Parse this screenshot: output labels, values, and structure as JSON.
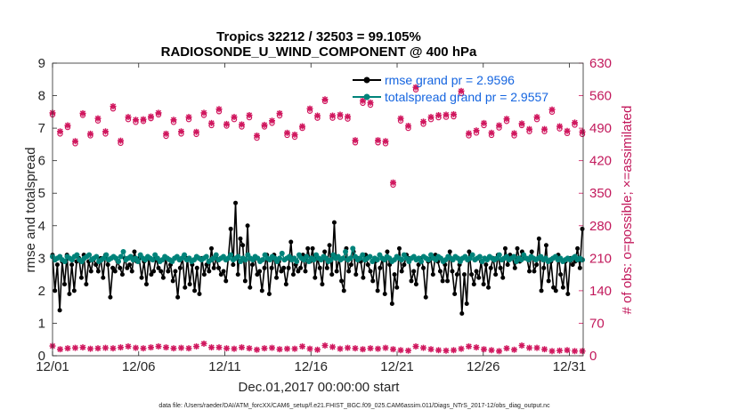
{
  "chart_data": {
    "type": "line",
    "title": "Tropics 32212 / 32503 = 99.105%",
    "subtitle": "RADIOSONDE_U_WIND_COMPONENT @ 400 hPa",
    "xlabel": "Dec.01,2017 00:00:00 start",
    "ylabel": "rmse and totalspread",
    "ylabel_right": "# of obs: o=possible; ×=assimilated",
    "footer": "data file: /Users/raeder/DAI/ATM_forcXX/CAM6_setup/f.e21.FHIST_BGC.f09_025.CAM6assim.011/Diags_NTrS_2017-12/obs_diag_output.nc",
    "xlim": [
      1,
      31.8
    ],
    "ylim": [
      0,
      9
    ],
    "ylim_right": [
      0,
      630
    ],
    "x_ticks": [
      1,
      6,
      11,
      16,
      21,
      26,
      31
    ],
    "x_tick_labels": [
      "12/01",
      "12/06",
      "12/11",
      "12/16",
      "12/21",
      "12/26",
      "12/31"
    ],
    "y_ticks": [
      0,
      1,
      2,
      3,
      4,
      5,
      6,
      7,
      8,
      9
    ],
    "y_ticks_right": [
      0,
      70,
      140,
      210,
      280,
      350,
      420,
      490,
      560,
      630
    ],
    "legend": [
      "rmse grand pr = 2.9596",
      "totalspread grand pr = 2.9557"
    ],
    "colors": {
      "rmse": "#000000",
      "spread": "#00837a",
      "obs": "#d0175e",
      "legend_text": "#1565e0",
      "axis": "#262626"
    },
    "series": [
      {
        "name": "rmse",
        "values": [
          3.1,
          2.0,
          2.8,
          1.4,
          2.9,
          2.2,
          3.1,
          1.9,
          2.8,
          2.0,
          2.9,
          3.0,
          2.4,
          3.1,
          2.2,
          2.9,
          2.6,
          3.0,
          2.8,
          2.6,
          3.0,
          2.4,
          3.1,
          2.8,
          1.8,
          2.7,
          2.6,
          2.9,
          2.7,
          2.5,
          3.0,
          2.7,
          2.8,
          2.6,
          3.2,
          2.9,
          3.0,
          2.4,
          2.9,
          2.2,
          3.0,
          2.5,
          2.6,
          3.0,
          2.7,
          2.6,
          2.4,
          3.0,
          2.6,
          2.8,
          2.3,
          2.6,
          1.8,
          2.7,
          3.0,
          2.1,
          3.0,
          2.2,
          2.8,
          2.0,
          2.7,
          1.9,
          3.0,
          2.5,
          2.8,
          2.6,
          3.3,
          2.7,
          3.0,
          2.7,
          2.5,
          2.6,
          2.3,
          3.0,
          3.9,
          2.8,
          4.7,
          2.5,
          3.6,
          3.4,
          2.3,
          4.0,
          2.1,
          2.8,
          3.0,
          2.5,
          2.6,
          2.0,
          2.7,
          3.1,
          1.9,
          2.7,
          3.1,
          2.4,
          2.9,
          2.6,
          2.7,
          2.2,
          2.7,
          3.5,
          2.5,
          2.8,
          2.6,
          2.7,
          3.1,
          2.6,
          3.3,
          2.9,
          3.3,
          2.4,
          3.0,
          2.7,
          2.2,
          3.2,
          2.7,
          3.4,
          2.5,
          4.1,
          2.6,
          3.0,
          2.3,
          2.0,
          3.3,
          2.6,
          2.8,
          3.2,
          2.5,
          3.0,
          2.9,
          2.4,
          3.1,
          2.8,
          2.6,
          2.3,
          2.9,
          2.0,
          2.7,
          3.0,
          1.9,
          3.2,
          2.8,
          1.6,
          2.5,
          2.1,
          3.3,
          2.6,
          2.8,
          3.1,
          3.0,
          2.3,
          2.6,
          2.2,
          2.8,
          3.0,
          2.7,
          1.8,
          2.9,
          3.0,
          2.5,
          3.1,
          2.9,
          2.6,
          2.3,
          2.8,
          2.3,
          3.2,
          2.6,
          1.9,
          2.5,
          2.8,
          1.3,
          2.5,
          1.6,
          3.2,
          2.5,
          2.2,
          2.6,
          2.4,
          2.9,
          2.2,
          2.8,
          2.1,
          2.7,
          3.0,
          2.5,
          3.1,
          2.7,
          2.4,
          3.3,
          2.8,
          3.1,
          3.0,
          2.7,
          3.3,
          2.9,
          3.2,
          3.0,
          3.0,
          2.6,
          3.2,
          2.6,
          2.8,
          3.6,
          2.0,
          2.7,
          3.4,
          2.3,
          2.9,
          2.1,
          2.0,
          3.1,
          2.5,
          2.1,
          2.9,
          1.9,
          3.0,
          2.8,
          2.9,
          3.3,
          2.7,
          3.9
        ]
      },
      {
        "name": "totalspread",
        "values": [
          3.05,
          2.95,
          3.0,
          3.05,
          2.95,
          2.9,
          3.05,
          3.0,
          2.95,
          3.05,
          3.1,
          2.95,
          2.9,
          3.0,
          3.05,
          3.1,
          2.95,
          3.0,
          3.05,
          2.9,
          2.95,
          3.0,
          3.1,
          2.95,
          3.0,
          3.05,
          3.0,
          2.9,
          3.05,
          3.2,
          2.95,
          3.0,
          3.05,
          2.95,
          3.0,
          2.9,
          3.1,
          3.0,
          2.95,
          3.05,
          3.0,
          2.95,
          3.1,
          3.0,
          2.9,
          2.95,
          3.05,
          3.0,
          2.95,
          2.9,
          3.0,
          3.05,
          2.95,
          3.0,
          3.1,
          2.95,
          3.0,
          2.9,
          2.95,
          3.05,
          3.0,
          2.95,
          3.0,
          3.05,
          2.9,
          2.95,
          3.0,
          3.1,
          2.95,
          3.0,
          3.05,
          2.95,
          3.0,
          3.1,
          2.95,
          3.0,
          3.05,
          2.9,
          3.0,
          2.95,
          3.1,
          3.0,
          2.95,
          3.05,
          3.0,
          2.9,
          2.95,
          3.1,
          3.0,
          2.95,
          3.05,
          3.0,
          2.9,
          3.0,
          3.15,
          2.95,
          3.0,
          3.05,
          2.95,
          3.0,
          2.9,
          3.1,
          3.0,
          2.95,
          3.05,
          2.9,
          3.0,
          2.95,
          3.1,
          3.0,
          2.95,
          3.05,
          3.0,
          2.9,
          2.95,
          3.1,
          3.0,
          3.05,
          2.95,
          3.0,
          3.2,
          2.95,
          3.0,
          3.3,
          3.05,
          2.95,
          3.0,
          3.1,
          2.95,
          3.0,
          3.05,
          2.9,
          3.0,
          2.95,
          3.1,
          3.0,
          2.95,
          3.05,
          3.0,
          2.9,
          2.95,
          3.05,
          3.0,
          2.95,
          3.1,
          3.0,
          2.9,
          3.0,
          3.05,
          2.95,
          3.0,
          2.9,
          3.05,
          3.0,
          2.95,
          3.1,
          3.0,
          2.95,
          3.05,
          3.0,
          2.9,
          2.95,
          3.05,
          3.0,
          2.95,
          3.05,
          3.0,
          2.9,
          3.0,
          3.05,
          2.95,
          3.0,
          3.1,
          2.95,
          3.0,
          3.05,
          2.9,
          3.0,
          2.95,
          3.05,
          3.0,
          2.95,
          3.0,
          3.1,
          2.95,
          3.0,
          3.05,
          2.95,
          3.0,
          3.05,
          2.9,
          3.0,
          2.95,
          3.1,
          3.0,
          2.95,
          3.05,
          3.0,
          2.95,
          3.0,
          3.05,
          2.95,
          3.0,
          2.9,
          2.95,
          3.0,
          3.05,
          2.95,
          3.0,
          2.9,
          2.95,
          3.0,
          2.95,
          3.0,
          3.05,
          2.95,
          3.0,
          2.95
        ]
      },
      {
        "name": "possible",
        "values": [
          519,
          478,
          492,
          457,
          518,
          474,
          506,
          478,
          532,
          458,
          509,
          503,
          505,
          511,
          519,
          473,
          503,
          478,
          509,
          477,
          518,
          496,
          526,
          495,
          509,
          493,
          513,
          469,
          493,
          501,
          517,
          475,
          471,
          490,
          527,
          512,
          548,
          512,
          514,
          510,
          459,
          544,
          540,
          459,
          457,
          368,
          506,
          490,
          573,
          499,
          509,
          513,
          514,
          515,
          565,
          474,
          480,
          496,
          475,
          491,
          505,
          474,
          496,
          483,
          509,
          483,
          525,
          489,
          479,
          497,
          477
        ],
        "assimilated": [
          523,
          483,
          496,
          462,
          522,
          478,
          511,
          483,
          537,
          463,
          514,
          508,
          509,
          515,
          523,
          478,
          508,
          483,
          514,
          482,
          523,
          501,
          531,
          499,
          514,
          498,
          518,
          474,
          497,
          506,
          522,
          480,
          476,
          494,
          532,
          517,
          552,
          517,
          519,
          515,
          464,
          549,
          545,
          464,
          462,
          373,
          511,
          495,
          578,
          504,
          514,
          518,
          519,
          520,
          570,
          479,
          485,
          501,
          480,
          496,
          510,
          479,
          500,
          488,
          514,
          488,
          530,
          494,
          484,
          502,
          482
        ]
      },
      {
        "name": "possible_surface",
        "values": [
          21,
          14,
          16,
          17,
          18,
          15,
          16,
          17,
          16,
          18,
          20,
          17,
          16,
          18,
          20,
          18,
          16,
          17,
          16,
          20,
          26,
          18,
          18,
          16,
          15,
          18,
          16,
          13,
          16,
          17,
          14,
          15,
          15,
          20,
          15,
          13,
          22,
          19,
          15,
          17,
          16,
          14,
          16,
          15,
          17,
          14,
          12,
          11,
          20,
          17,
          14,
          12,
          11,
          12,
          15,
          20,
          18,
          14,
          12,
          10,
          16,
          13,
          22,
          17,
          17,
          14,
          10,
          11,
          12,
          10,
          10
        ]
      }
    ]
  }
}
